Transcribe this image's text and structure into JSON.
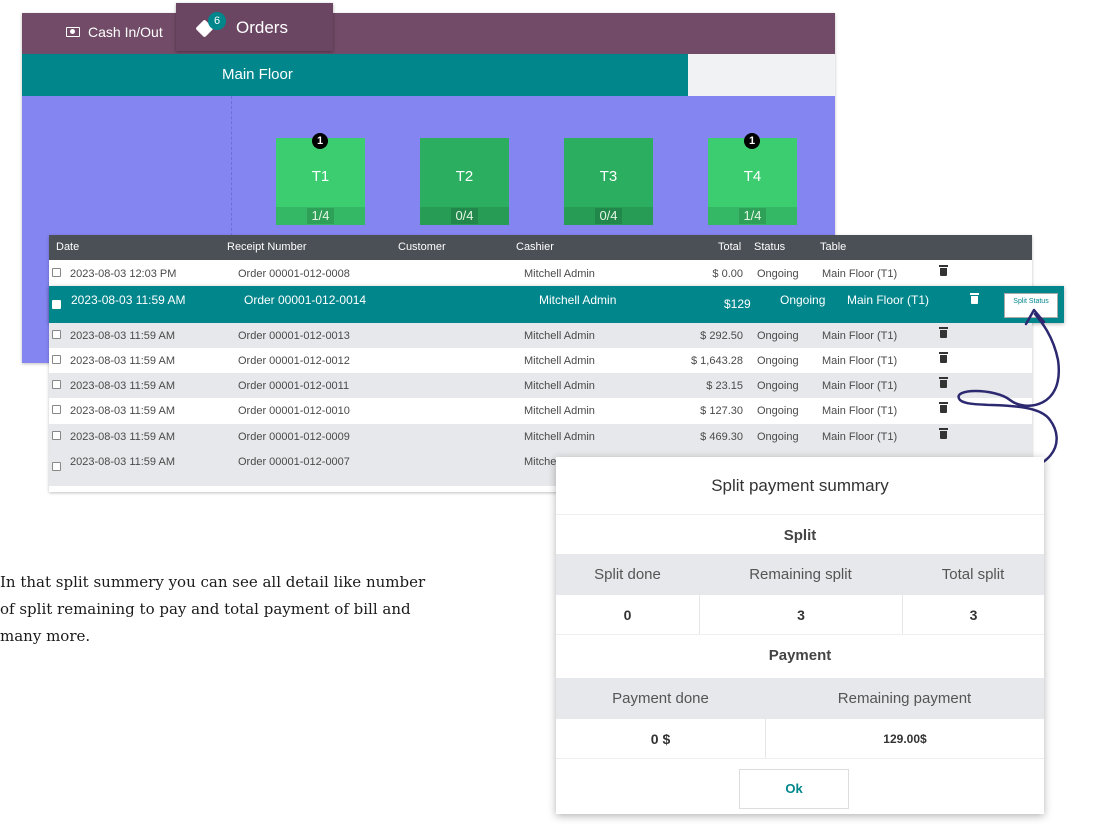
{
  "topbar": {
    "cash_label": "Cash In/Out",
    "orders_label": "Orders",
    "orders_badge": "6"
  },
  "floor": {
    "name": "Main Floor"
  },
  "tables": [
    {
      "name": "T1",
      "seats": "1/4",
      "order_count": "1"
    },
    {
      "name": "T2",
      "seats": "0/4",
      "order_count": ""
    },
    {
      "name": "T3",
      "seats": "0/4",
      "order_count": ""
    },
    {
      "name": "T4",
      "seats": "1/4",
      "order_count": "1"
    }
  ],
  "order_list": {
    "columns": [
      "Date",
      "Receipt Number",
      "Customer",
      "Cashier",
      "Total",
      "Status",
      "Table"
    ],
    "rows": [
      {
        "date": "2023-08-03 12:03 PM",
        "receipt": "Order 00001-012-0008",
        "cashier": "Mitchell Admin",
        "total": "$ 0.00",
        "status": "Ongoing",
        "table": "Main Floor (T1)"
      },
      {
        "date": "2023-08-03 11:59 AM",
        "receipt": "Order 00001-012-0014",
        "cashier": "Mitchell Admin",
        "total": "$129",
        "status": "Ongoing",
        "table": "Main Floor (T1)",
        "selected": true,
        "action": "Split Status"
      },
      {
        "date": "2023-08-03 11:59 AM",
        "receipt": "Order 00001-012-0013",
        "cashier": "Mitchell Admin",
        "total": "$ 292.50",
        "status": "Ongoing",
        "table": "Main Floor (T1)"
      },
      {
        "date": "2023-08-03 11:59 AM",
        "receipt": "Order 00001-012-0012",
        "cashier": "Mitchell Admin",
        "total": "$ 1,643.28",
        "status": "Ongoing",
        "table": "Main Floor (T1)"
      },
      {
        "date": "2023-08-03 11:59 AM",
        "receipt": "Order 00001-012-0011",
        "cashier": "Mitchell Admin",
        "total": "$ 23.15",
        "status": "Ongoing",
        "table": "Main Floor (T1)"
      },
      {
        "date": "2023-08-03 11:59 AM",
        "receipt": "Order 00001-012-0010",
        "cashier": "Mitchell Admin",
        "total": "$ 127.30",
        "status": "Ongoing",
        "table": "Main Floor (T1)"
      },
      {
        "date": "2023-08-03 11:59 AM",
        "receipt": "Order 00001-012-0009",
        "cashier": "Mitchell Admin",
        "total": "$ 469.30",
        "status": "Ongoing",
        "table": "Main Floor (T1)"
      },
      {
        "date": "2023-08-03 11:59 AM",
        "receipt": "Order 00001-012-0007",
        "cashier": "Mitche",
        "total": "",
        "status": "",
        "table": ""
      }
    ]
  },
  "note": "In that split summery you can see all detail like number of split remaining to pay and total payment of bill and many more.",
  "modal": {
    "title": "Split payment summary",
    "split_section": "Split",
    "split_headers": [
      "Split done",
      "Remaining split",
      "Total split"
    ],
    "split_values": [
      "0",
      "3",
      "3"
    ],
    "payment_section": "Payment",
    "payment_headers": [
      "Payment done",
      "Remaining payment"
    ],
    "payment_values": [
      "0 $",
      "129.00$"
    ],
    "ok_label": "Ok"
  },
  "colors": {
    "header_purple": "#714b67",
    "teal": "#01868c",
    "floor_bg": "#8585f2",
    "table_green": "#3ccd71"
  }
}
